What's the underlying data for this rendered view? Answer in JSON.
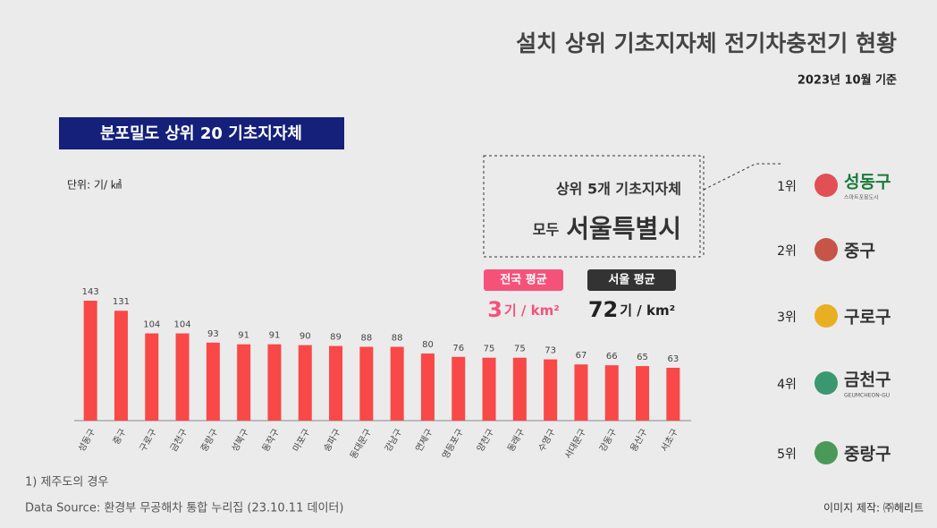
{
  "header": {
    "title": "설치 상위 기초지자체 전기차충전기 현황",
    "subtitle": "2023년 10월 기준",
    "badge": "분포밀도 상위 20 기초지자체"
  },
  "chart_data": {
    "type": "bar",
    "unit": "단위: 기/ ㎢",
    "color": "#f94848",
    "categories": [
      "성동구",
      "중구",
      "구로구",
      "금천구",
      "중랑구",
      "성북구",
      "동작구",
      "마포구",
      "송파구",
      "동대문구",
      "강남구",
      "연제구",
      "영등포구",
      "양천구",
      "동래구",
      "수영구",
      "서대문구",
      "강동구",
      "용산구",
      "서초구"
    ],
    "values": [
      143,
      131,
      104,
      104,
      93,
      91,
      91,
      90,
      89,
      88,
      88,
      80,
      76,
      75,
      75,
      73,
      67,
      66,
      65,
      63
    ]
  },
  "callout": {
    "line1": "상위 5개 기초지자체",
    "line2a": "모두",
    "line2b": "서울특별시"
  },
  "averages": [
    {
      "label": "전국 평균",
      "value": 3,
      "unit": "기 / km²",
      "color": "#f5527a"
    },
    {
      "label": "서울 평균",
      "value": 72,
      "unit": "기 / km²",
      "color": "#333333"
    }
  ],
  "ranking": [
    {
      "rank": "1위",
      "name": "성동구",
      "sub": "스마트포용도시"
    },
    {
      "rank": "2위",
      "name": "중구"
    },
    {
      "rank": "3위",
      "name": "구로구"
    },
    {
      "rank": "4위",
      "name": "금천구",
      "sub": "GEUMCHEON-GU"
    },
    {
      "rank": "5위",
      "name": "중랑구"
    }
  ],
  "footer": {
    "note": "1) 제주도의 경우",
    "source": "Data Source: 환경부 무공해차 통합 누리집 (23.10.11 데이터)",
    "credit": "이미지 제작: ㈜헤리트"
  }
}
